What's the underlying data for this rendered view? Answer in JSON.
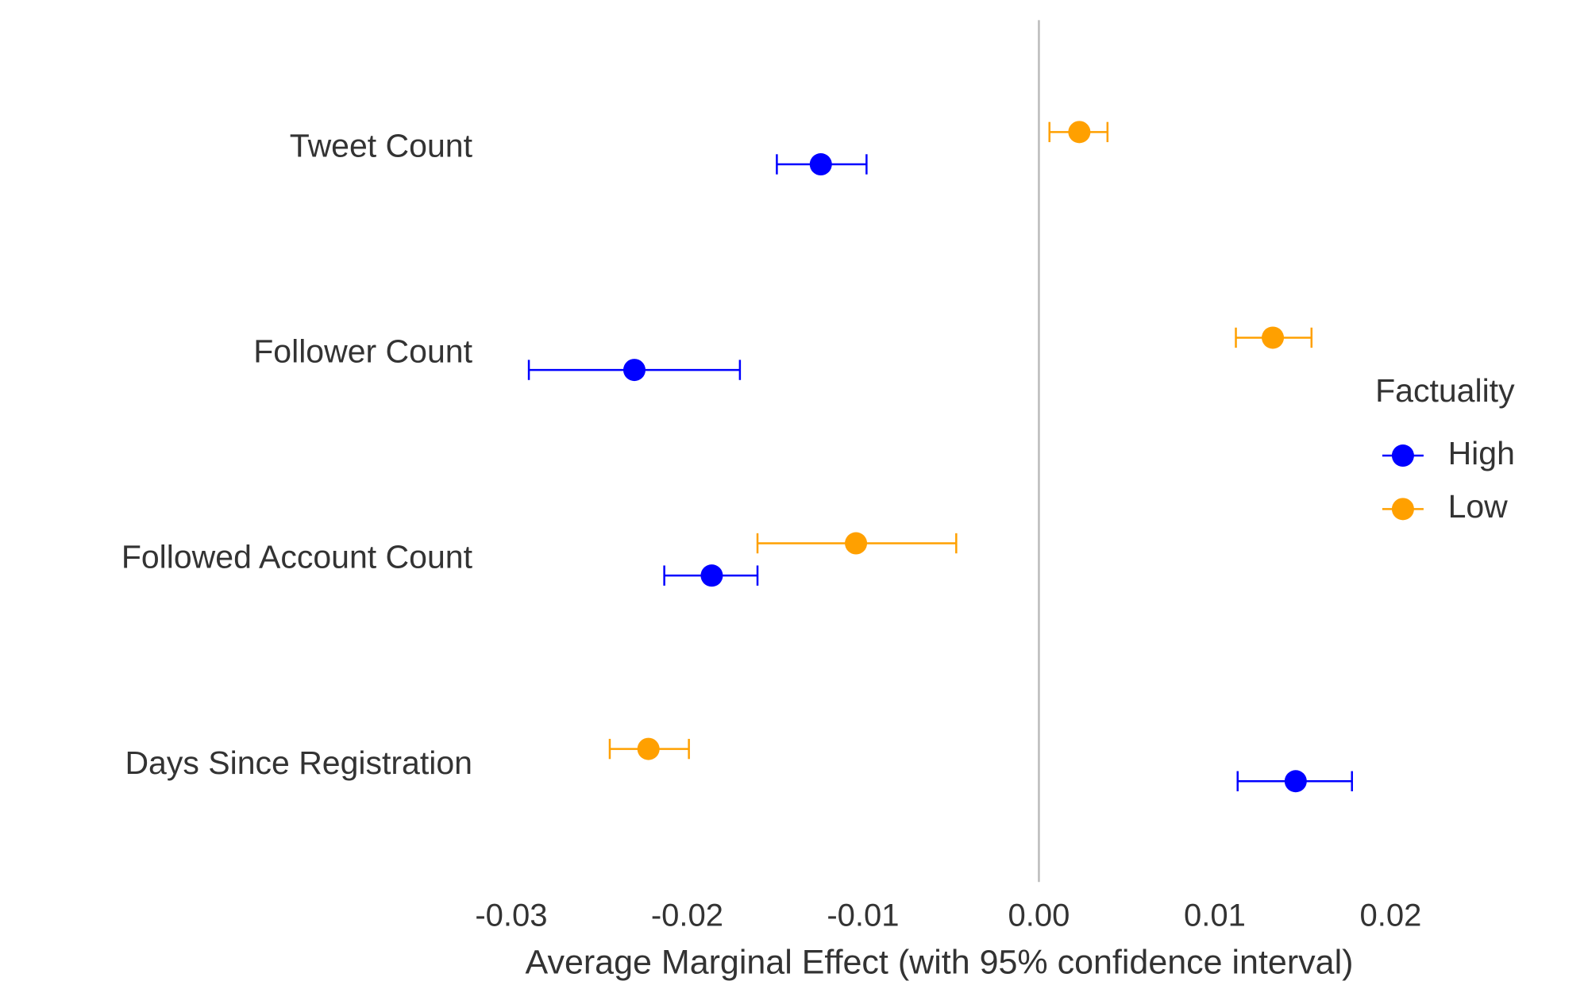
{
  "chart_data": {
    "type": "dot-whisker",
    "x_label": "Average Marginal Effect (with 95% confidence interval)",
    "categories": [
      "Tweet Count",
      "Follower Count",
      "Followed Account Count",
      "Days Since Registration"
    ],
    "series": [
      {
        "name": "High",
        "color": "#0000ff",
        "values": [
          -0.0124,
          -0.023,
          -0.0186,
          0.0146
        ],
        "lower": [
          -0.0149,
          -0.029,
          -0.0213,
          0.0113
        ],
        "upper": [
          -0.0098,
          -0.017,
          -0.016,
          0.0178
        ]
      },
      {
        "name": "Low",
        "color": "#ffa000",
        "values": [
          0.0023,
          0.0133,
          -0.0104,
          -0.0222
        ],
        "lower": [
          0.0006,
          0.0112,
          -0.016,
          -0.0244
        ],
        "upper": [
          0.0039,
          0.0155,
          -0.0047,
          -0.0199
        ]
      }
    ],
    "xlim": [
      -0.03,
      0.02
    ],
    "xticks": [
      -0.03,
      -0.02,
      -0.01,
      {
        "value": 0,
        "label": "0.00"
      },
      0.01,
      0.02
    ],
    "zero_line": true,
    "legend_title": "Factuality",
    "legend_position": "right"
  }
}
